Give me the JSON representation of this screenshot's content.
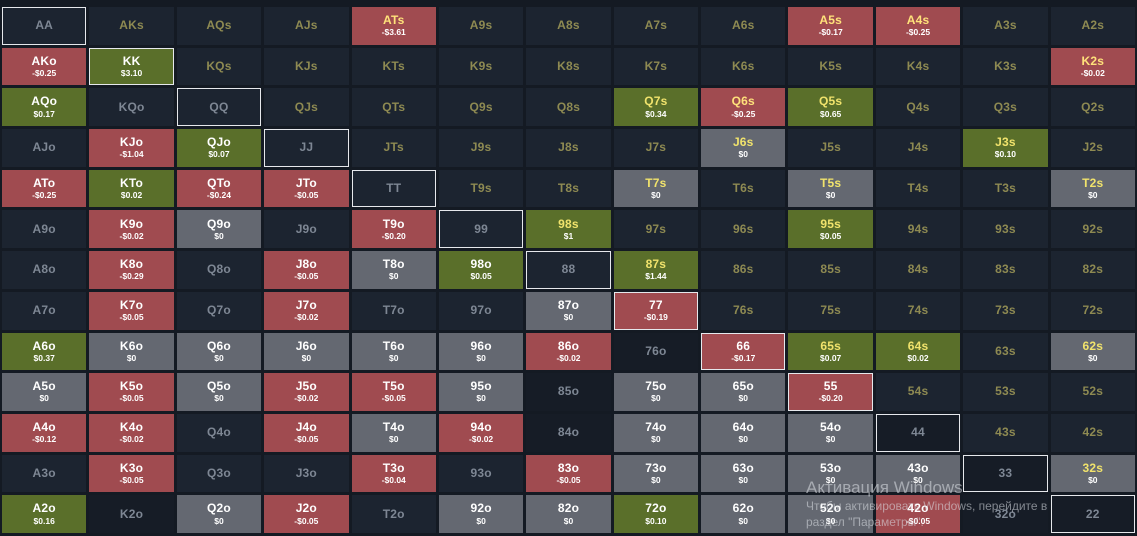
{
  "grid": [
    [
      {
        "h": "AA",
        "s": "none",
        "t": "p",
        "sel": true
      },
      {
        "h": "AKs",
        "s": "none",
        "t": "s"
      },
      {
        "h": "AQs",
        "s": "none",
        "t": "s"
      },
      {
        "h": "AJs",
        "s": "none",
        "t": "s"
      },
      {
        "h": "ATs",
        "ev": "-$3.61",
        "s": "red",
        "t": "s"
      },
      {
        "h": "A9s",
        "s": "none",
        "t": "s"
      },
      {
        "h": "A8s",
        "s": "none",
        "t": "s"
      },
      {
        "h": "A7s",
        "s": "none",
        "t": "s"
      },
      {
        "h": "A6s",
        "s": "none",
        "t": "s"
      },
      {
        "h": "A5s",
        "ev": "-$0.17",
        "s": "red",
        "t": "s"
      },
      {
        "h": "A4s",
        "ev": "-$0.25",
        "s": "red",
        "t": "s"
      },
      {
        "h": "A3s",
        "s": "none",
        "t": "s"
      },
      {
        "h": "A2s",
        "s": "none",
        "t": "s"
      }
    ],
    [
      {
        "h": "AKo",
        "ev": "-$0.25",
        "s": "red",
        "t": "o"
      },
      {
        "h": "KK",
        "ev": "$3.10",
        "s": "green",
        "t": "p",
        "sel": true
      },
      {
        "h": "KQs",
        "s": "none",
        "t": "s"
      },
      {
        "h": "KJs",
        "s": "none",
        "t": "s"
      },
      {
        "h": "KTs",
        "s": "none",
        "t": "s"
      },
      {
        "h": "K9s",
        "s": "none",
        "t": "s"
      },
      {
        "h": "K8s",
        "s": "none",
        "t": "s"
      },
      {
        "h": "K7s",
        "s": "none",
        "t": "s"
      },
      {
        "h": "K6s",
        "s": "none",
        "t": "s"
      },
      {
        "h": "K5s",
        "s": "none",
        "t": "s"
      },
      {
        "h": "K4s",
        "s": "none",
        "t": "s"
      },
      {
        "h": "K3s",
        "s": "none",
        "t": "s"
      },
      {
        "h": "K2s",
        "ev": "-$0.02",
        "s": "red",
        "t": "s"
      }
    ],
    [
      {
        "h": "AQo",
        "ev": "$0.17",
        "s": "green",
        "t": "o"
      },
      {
        "h": "KQo",
        "s": "none",
        "t": "o"
      },
      {
        "h": "QQ",
        "s": "none",
        "t": "p",
        "sel": true
      },
      {
        "h": "QJs",
        "s": "none",
        "t": "s"
      },
      {
        "h": "QTs",
        "s": "none",
        "t": "s"
      },
      {
        "h": "Q9s",
        "s": "none",
        "t": "s"
      },
      {
        "h": "Q8s",
        "s": "none",
        "t": "s"
      },
      {
        "h": "Q7s",
        "ev": "$0.34",
        "s": "green",
        "t": "s"
      },
      {
        "h": "Q6s",
        "ev": "-$0.25",
        "s": "red",
        "t": "s"
      },
      {
        "h": "Q5s",
        "ev": "$0.65",
        "s": "green",
        "t": "s"
      },
      {
        "h": "Q4s",
        "s": "none",
        "t": "s"
      },
      {
        "h": "Q3s",
        "s": "none",
        "t": "s"
      },
      {
        "h": "Q2s",
        "s": "none",
        "t": "s"
      }
    ],
    [
      {
        "h": "AJo",
        "s": "none",
        "t": "o"
      },
      {
        "h": "KJo",
        "ev": "-$1.04",
        "s": "red",
        "t": "o"
      },
      {
        "h": "QJo",
        "ev": "$0.07",
        "s": "green",
        "t": "o"
      },
      {
        "h": "JJ",
        "s": "none",
        "t": "p",
        "sel": true
      },
      {
        "h": "JTs",
        "s": "none",
        "t": "s"
      },
      {
        "h": "J9s",
        "s": "none",
        "t": "s"
      },
      {
        "h": "J8s",
        "s": "none",
        "t": "s"
      },
      {
        "h": "J7s",
        "s": "none",
        "t": "s"
      },
      {
        "h": "J6s",
        "ev": "$0",
        "s": "gray",
        "t": "s"
      },
      {
        "h": "J5s",
        "s": "none",
        "t": "s"
      },
      {
        "h": "J4s",
        "s": "none",
        "t": "s"
      },
      {
        "h": "J3s",
        "ev": "$0.10",
        "s": "green",
        "t": "s"
      },
      {
        "h": "J2s",
        "s": "none",
        "t": "s"
      }
    ],
    [
      {
        "h": "ATo",
        "ev": "-$0.25",
        "s": "red",
        "t": "o"
      },
      {
        "h": "KTo",
        "ev": "$0.02",
        "s": "green",
        "t": "o"
      },
      {
        "h": "QTo",
        "ev": "-$0.24",
        "s": "red",
        "t": "o"
      },
      {
        "h": "JTo",
        "ev": "-$0.05",
        "s": "red",
        "t": "o"
      },
      {
        "h": "TT",
        "s": "none",
        "t": "p",
        "sel": true
      },
      {
        "h": "T9s",
        "s": "none",
        "t": "s"
      },
      {
        "h": "T8s",
        "s": "none",
        "t": "s"
      },
      {
        "h": "T7s",
        "ev": "$0",
        "s": "gray",
        "t": "s"
      },
      {
        "h": "T6s",
        "s": "none",
        "t": "s"
      },
      {
        "h": "T5s",
        "ev": "$0",
        "s": "gray",
        "t": "s"
      },
      {
        "h": "T4s",
        "s": "none",
        "t": "s"
      },
      {
        "h": "T3s",
        "s": "none",
        "t": "s"
      },
      {
        "h": "T2s",
        "ev": "$0",
        "s": "gray",
        "t": "s"
      }
    ],
    [
      {
        "h": "A9o",
        "s": "none",
        "t": "o"
      },
      {
        "h": "K9o",
        "ev": "-$0.02",
        "s": "red",
        "t": "o"
      },
      {
        "h": "Q9o",
        "ev": "$0",
        "s": "gray",
        "t": "o"
      },
      {
        "h": "J9o",
        "s": "none",
        "t": "o"
      },
      {
        "h": "T9o",
        "ev": "-$0.20",
        "s": "red",
        "t": "o"
      },
      {
        "h": "99",
        "s": "none",
        "t": "p",
        "sel": true
      },
      {
        "h": "98s",
        "ev": "$1",
        "s": "green",
        "t": "s"
      },
      {
        "h": "97s",
        "s": "none",
        "t": "s"
      },
      {
        "h": "96s",
        "s": "none",
        "t": "s"
      },
      {
        "h": "95s",
        "ev": "$0.05",
        "s": "green",
        "t": "s"
      },
      {
        "h": "94s",
        "s": "none",
        "t": "s"
      },
      {
        "h": "93s",
        "s": "none",
        "t": "s"
      },
      {
        "h": "92s",
        "s": "none",
        "t": "s"
      }
    ],
    [
      {
        "h": "A8o",
        "s": "none",
        "t": "o"
      },
      {
        "h": "K8o",
        "ev": "-$0.29",
        "s": "red",
        "t": "o"
      },
      {
        "h": "Q8o",
        "s": "none",
        "t": "o"
      },
      {
        "h": "J8o",
        "ev": "-$0.05",
        "s": "red",
        "t": "o"
      },
      {
        "h": "T8o",
        "ev": "$0",
        "s": "gray",
        "t": "o"
      },
      {
        "h": "98o",
        "ev": "$0.05",
        "s": "green",
        "t": "o"
      },
      {
        "h": "88",
        "s": "none",
        "t": "p",
        "sel": true
      },
      {
        "h": "87s",
        "ev": "$1.44",
        "s": "green",
        "t": "s"
      },
      {
        "h": "86s",
        "s": "none",
        "t": "s"
      },
      {
        "h": "85s",
        "s": "none",
        "t": "s"
      },
      {
        "h": "84s",
        "s": "none",
        "t": "s"
      },
      {
        "h": "83s",
        "s": "none",
        "t": "s"
      },
      {
        "h": "82s",
        "s": "none",
        "t": "s"
      }
    ],
    [
      {
        "h": "A7o",
        "s": "none",
        "t": "o"
      },
      {
        "h": "K7o",
        "ev": "-$0.05",
        "s": "red",
        "t": "o"
      },
      {
        "h": "Q7o",
        "s": "none",
        "t": "o"
      },
      {
        "h": "J7o",
        "ev": "-$0.02",
        "s": "red",
        "t": "o"
      },
      {
        "h": "T7o",
        "s": "none",
        "t": "o"
      },
      {
        "h": "97o",
        "s": "none",
        "t": "o"
      },
      {
        "h": "87o",
        "ev": "$0",
        "s": "gray",
        "t": "o"
      },
      {
        "h": "77",
        "ev": "-$0.19",
        "s": "red",
        "t": "p",
        "sel": true
      },
      {
        "h": "76s",
        "s": "none",
        "t": "s"
      },
      {
        "h": "75s",
        "s": "none",
        "t": "s"
      },
      {
        "h": "74s",
        "s": "none",
        "t": "s"
      },
      {
        "h": "73s",
        "s": "none",
        "t": "s"
      },
      {
        "h": "72s",
        "s": "none",
        "t": "s"
      }
    ],
    [
      {
        "h": "A6o",
        "ev": "$0.37",
        "s": "green",
        "t": "o"
      },
      {
        "h": "K6o",
        "ev": "$0",
        "s": "gray",
        "t": "o"
      },
      {
        "h": "Q6o",
        "ev": "$0",
        "s": "gray",
        "t": "o"
      },
      {
        "h": "J6o",
        "ev": "$0",
        "s": "gray",
        "t": "o"
      },
      {
        "h": "T6o",
        "ev": "$0",
        "s": "gray",
        "t": "o"
      },
      {
        "h": "96o",
        "ev": "$0",
        "s": "gray",
        "t": "o"
      },
      {
        "h": "86o",
        "ev": "-$0.02",
        "s": "red",
        "t": "o"
      },
      {
        "h": "76o",
        "s": "dark",
        "t": "o"
      },
      {
        "h": "66",
        "ev": "-$0.17",
        "s": "red",
        "t": "p",
        "sel": true
      },
      {
        "h": "65s",
        "ev": "$0.07",
        "s": "green",
        "t": "s"
      },
      {
        "h": "64s",
        "ev": "$0.02",
        "s": "green",
        "t": "s"
      },
      {
        "h": "63s",
        "s": "none",
        "t": "s"
      },
      {
        "h": "62s",
        "ev": "$0",
        "s": "gray",
        "t": "s"
      }
    ],
    [
      {
        "h": "A5o",
        "ev": "$0",
        "s": "gray",
        "t": "o"
      },
      {
        "h": "K5o",
        "ev": "-$0.05",
        "s": "red",
        "t": "o"
      },
      {
        "h": "Q5o",
        "ev": "$0",
        "s": "gray",
        "t": "o"
      },
      {
        "h": "J5o",
        "ev": "-$0.02",
        "s": "red",
        "t": "o"
      },
      {
        "h": "T5o",
        "ev": "-$0.05",
        "s": "red",
        "t": "o"
      },
      {
        "h": "95o",
        "ev": "$0",
        "s": "gray",
        "t": "o"
      },
      {
        "h": "85o",
        "s": "dark",
        "t": "o"
      },
      {
        "h": "75o",
        "ev": "$0",
        "s": "gray",
        "t": "o"
      },
      {
        "h": "65o",
        "ev": "$0",
        "s": "gray",
        "t": "o"
      },
      {
        "h": "55",
        "ev": "-$0.20",
        "s": "red",
        "t": "p",
        "sel": true
      },
      {
        "h": "54s",
        "s": "none",
        "t": "s"
      },
      {
        "h": "53s",
        "s": "none",
        "t": "s"
      },
      {
        "h": "52s",
        "s": "none",
        "t": "s"
      }
    ],
    [
      {
        "h": "A4o",
        "ev": "-$0.12",
        "s": "red",
        "t": "o"
      },
      {
        "h": "K4o",
        "ev": "-$0.02",
        "s": "red",
        "t": "o"
      },
      {
        "h": "Q4o",
        "s": "none",
        "t": "o"
      },
      {
        "h": "J4o",
        "ev": "-$0.05",
        "s": "red",
        "t": "o"
      },
      {
        "h": "T4o",
        "ev": "$0",
        "s": "gray",
        "t": "o"
      },
      {
        "h": "94o",
        "ev": "-$0.02",
        "s": "red",
        "t": "o"
      },
      {
        "h": "84o",
        "s": "dark",
        "t": "o"
      },
      {
        "h": "74o",
        "ev": "$0",
        "s": "gray",
        "t": "o"
      },
      {
        "h": "64o",
        "ev": "$0",
        "s": "gray",
        "t": "o"
      },
      {
        "h": "54o",
        "ev": "$0",
        "s": "gray",
        "t": "o"
      },
      {
        "h": "44",
        "s": "dark",
        "t": "p",
        "sel": true
      },
      {
        "h": "43s",
        "s": "none",
        "t": "s"
      },
      {
        "h": "42s",
        "s": "none",
        "t": "s"
      }
    ],
    [
      {
        "h": "A3o",
        "s": "none",
        "t": "o"
      },
      {
        "h": "K3o",
        "ev": "-$0.05",
        "s": "red",
        "t": "o"
      },
      {
        "h": "Q3o",
        "s": "none",
        "t": "o"
      },
      {
        "h": "J3o",
        "s": "none",
        "t": "o"
      },
      {
        "h": "T3o",
        "ev": "-$0.04",
        "s": "red",
        "t": "o"
      },
      {
        "h": "93o",
        "s": "none",
        "t": "o"
      },
      {
        "h": "83o",
        "ev": "-$0.05",
        "s": "red",
        "t": "o"
      },
      {
        "h": "73o",
        "ev": "$0",
        "s": "gray",
        "t": "o"
      },
      {
        "h": "63o",
        "ev": "$0",
        "s": "gray",
        "t": "o"
      },
      {
        "h": "53o",
        "ev": "$0",
        "s": "gray",
        "t": "o"
      },
      {
        "h": "43o",
        "ev": "$0",
        "s": "gray",
        "t": "o"
      },
      {
        "h": "33",
        "s": "dark",
        "t": "p",
        "sel": true
      },
      {
        "h": "32s",
        "ev": "$0",
        "s": "gray",
        "t": "s"
      }
    ],
    [
      {
        "h": "A2o",
        "ev": "$0.16",
        "s": "green",
        "t": "o"
      },
      {
        "h": "K2o",
        "s": "dark",
        "t": "o"
      },
      {
        "h": "Q2o",
        "ev": "$0",
        "s": "gray",
        "t": "o"
      },
      {
        "h": "J2o",
        "ev": "-$0.05",
        "s": "red",
        "t": "o"
      },
      {
        "h": "T2o",
        "s": "none",
        "t": "o"
      },
      {
        "h": "92o",
        "ev": "$0",
        "s": "gray",
        "t": "o"
      },
      {
        "h": "82o",
        "ev": "$0",
        "s": "gray",
        "t": "o"
      },
      {
        "h": "72o",
        "ev": "$0.10",
        "s": "green",
        "t": "o"
      },
      {
        "h": "62o",
        "ev": "$0",
        "s": "gray",
        "t": "o"
      },
      {
        "h": "52o",
        "ev": "$0",
        "s": "gray",
        "t": "o"
      },
      {
        "h": "42o",
        "ev": "-$0.05",
        "s": "red",
        "t": "o"
      },
      {
        "h": "32o",
        "s": "dark",
        "t": "o"
      },
      {
        "h": "22",
        "s": "dark",
        "t": "p",
        "sel": true
      }
    ]
  ],
  "colors": {
    "background": "#141a23",
    "neutral_cell": "#1c2430",
    "negative_ev": "#a04b50",
    "positive_ev": "#5a6f2a",
    "zero_ev": "#646871",
    "suited_label": "#8e8a52",
    "offsuit_label": "#7e8794"
  },
  "watermark": {
    "title": "Активация Windows",
    "line1": "Чтобы активировать Windows, перейдите в",
    "line2": "раздел \"Параметры\"."
  }
}
